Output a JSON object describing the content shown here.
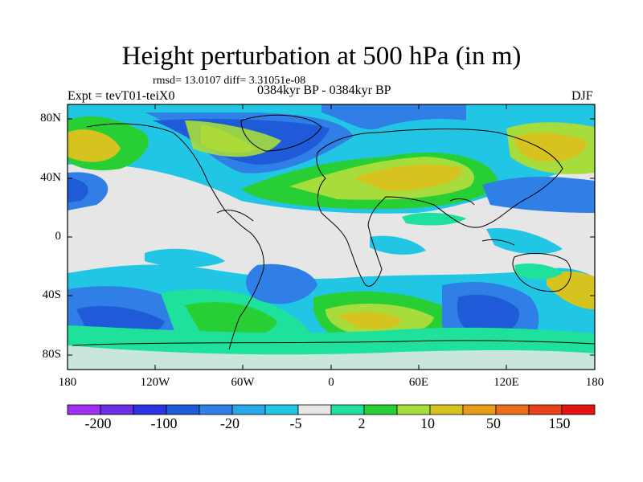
{
  "plot": {
    "title": "Height perturbation at 500 hPa (in m)",
    "stats_line": "rmsd= 13.0107 diff= 3.31051e-08",
    "experiment": "Expt = tevT01-teiX0",
    "period": "0384kyr BP - 0384kyr BP",
    "season": "DJF"
  },
  "axes": {
    "y_ticks": [
      "80N",
      "40N",
      "0",
      "40S",
      "80S"
    ],
    "x_ticks": [
      "180",
      "120W",
      "60W",
      "0",
      "60E",
      "120E",
      "180"
    ]
  },
  "colorbar": {
    "labels": [
      "-200",
      "-100",
      "-20",
      "-5",
      "2",
      "10",
      "50",
      "150"
    ],
    "colors": [
      "#a030f0",
      "#6a2fe6",
      "#2a34e0",
      "#1f5ad8",
      "#2f7fe6",
      "#27a7e8",
      "#22c6e5",
      "#e6e6e6",
      "#1ee29c",
      "#28cf34",
      "#a6dd3c",
      "#d7c31f",
      "#e89b17",
      "#ea6d1c",
      "#e8411e",
      "#e51414"
    ]
  },
  "colors": {
    "neutral": "#e6e6e6",
    "light_blue": "#22c6e5",
    "mid_blue": "#2f7fe6",
    "dark_blue": "#1f5ad8",
    "teal": "#1ee29c",
    "green": "#28cf34",
    "yellow_green": "#a6dd3c",
    "olive": "#d7c31f"
  }
}
